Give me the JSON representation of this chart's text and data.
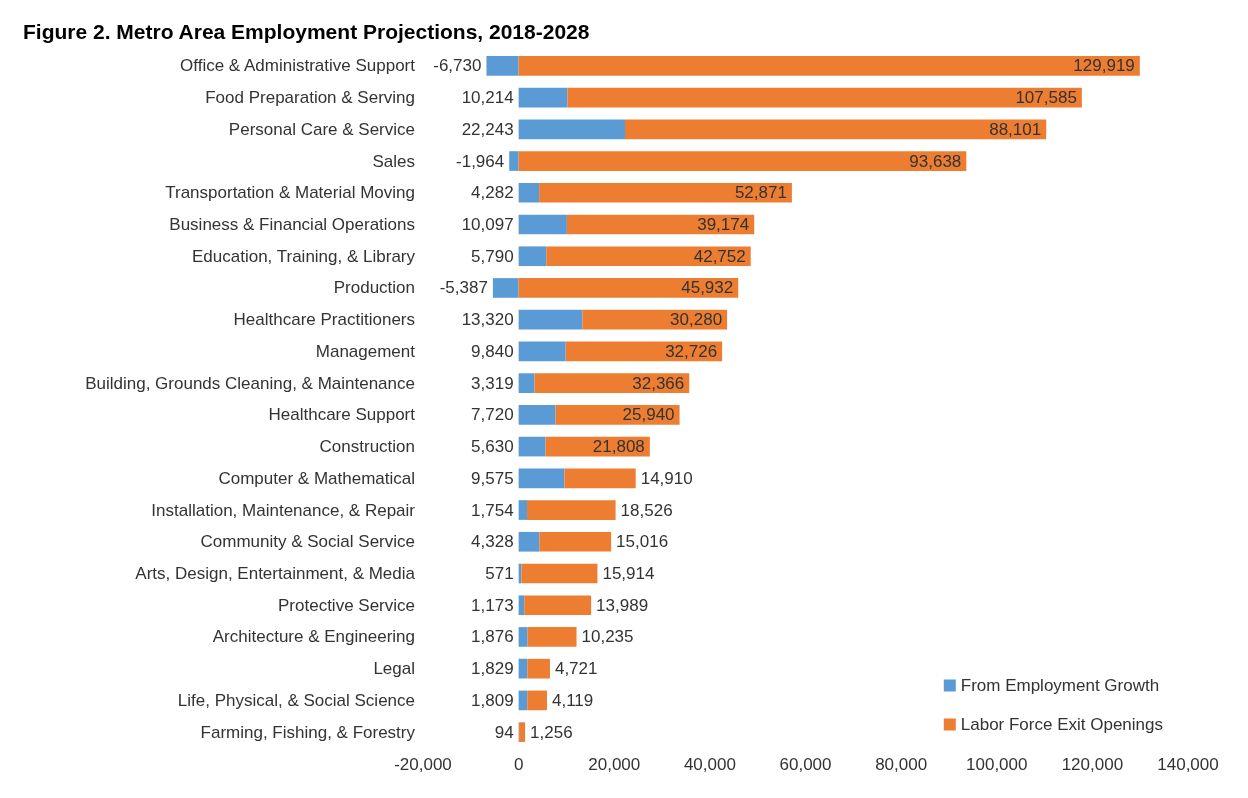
{
  "chart_data": {
    "type": "bar",
    "title": "Figure 2. Metro Area Employment Projections, 2018-2028",
    "orientation": "horizontal",
    "stacked": true,
    "categories": [
      "Office & Administrative Support",
      "Food Preparation & Serving",
      "Personal Care & Service",
      "Sales",
      "Transportation & Material Moving",
      "Business & Financial Operations",
      "Education, Training, & Library",
      "Production",
      "Healthcare Practitioners",
      "Management",
      "Building, Grounds Cleaning, & Maintenance",
      "Healthcare Support",
      "Construction",
      "Computer & Mathematical",
      "Installation, Maintenance, & Repair",
      "Community & Social Service",
      "Arts, Design, Entertainment, & Media",
      "Protective Service",
      "Architecture & Engineering",
      "Legal",
      "Life, Physical, & Social Science",
      "Farming, Fishing, & Forestry"
    ],
    "series": [
      {
        "name": "From Employment Growth",
        "color": "#5b9bd5",
        "values": [
          -6730,
          10214,
          22243,
          -1964,
          4282,
          10097,
          5790,
          -5387,
          13320,
          9840,
          3319,
          7720,
          5630,
          9575,
          1754,
          4328,
          571,
          1173,
          1876,
          1829,
          1809,
          94
        ],
        "value_labels": [
          "-6,730",
          "10,214",
          "22,243",
          "-1,964",
          "4,282",
          "10,097",
          "5,790",
          "-5,387",
          "13,320",
          "9,840",
          "3,319",
          "7,720",
          "5,630",
          "9,575",
          "1,754",
          "4,328",
          "571",
          "1,173",
          "1,876",
          "1,829",
          "1,809",
          "94"
        ]
      },
      {
        "name": "Labor Force Exit Openings",
        "color": "#ed7d31",
        "values": [
          129919,
          107585,
          88101,
          93638,
          52871,
          39174,
          42752,
          45932,
          30280,
          32726,
          32366,
          25940,
          21808,
          14910,
          18526,
          15016,
          15914,
          13989,
          10235,
          4721,
          4119,
          1256
        ],
        "value_labels": [
          "129,919",
          "107,585",
          "88,101",
          "93,638",
          "52,871",
          "39,174",
          "42,752",
          "45,932",
          "30,280",
          "32,726",
          "32,366",
          "25,940",
          "21,808",
          "14,910",
          "18,526",
          "15,016",
          "15,914",
          "13,989",
          "10,235",
          "4,721",
          "4,119",
          "1,256"
        ]
      }
    ],
    "xlim": [
      -20000,
      140000
    ],
    "xticks": [
      {
        "value": -20000,
        "label": "-20,000"
      },
      0,
      {
        "value": 20000,
        "label": "20,000"
      },
      {
        "value": 40000,
        "label": "40,000"
      },
      {
        "value": 60000,
        "label": "60,000"
      },
      {
        "value": 80000,
        "label": "80,000"
      },
      {
        "value": 100000,
        "label": "100,000"
      },
      {
        "value": 120000,
        "label": "120,000"
      },
      {
        "value": 140000,
        "label": "140,000"
      }
    ],
    "grid": false,
    "legend": "bottom right"
  }
}
